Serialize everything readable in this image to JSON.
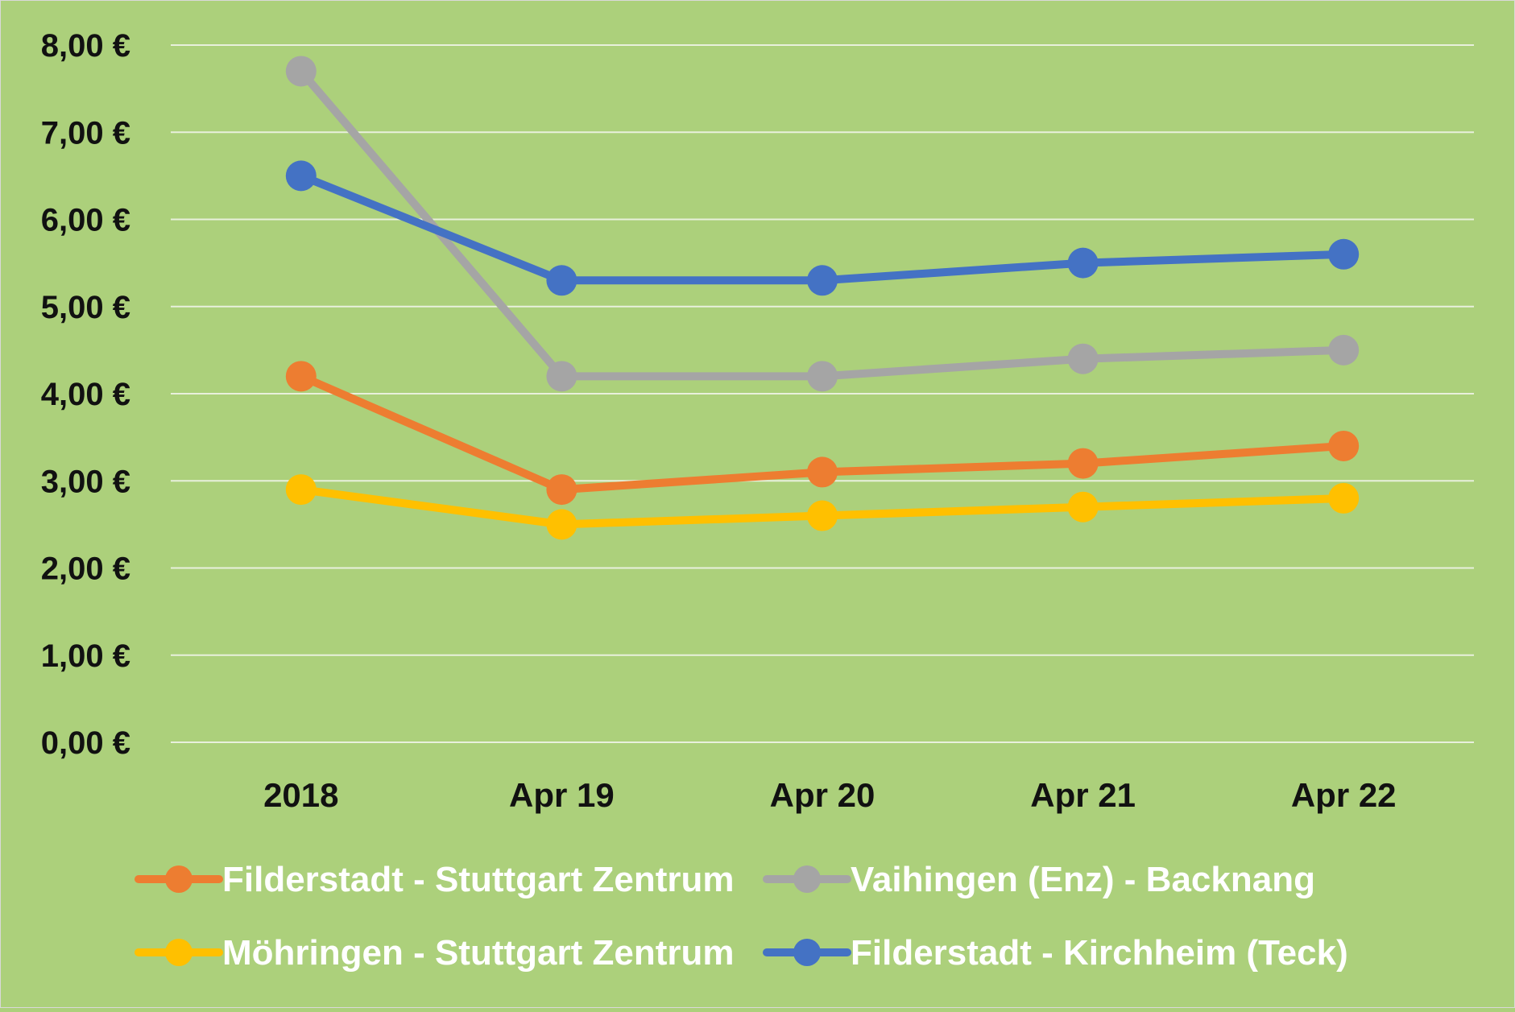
{
  "chart_data": {
    "type": "line",
    "title": "",
    "xlabel": "",
    "ylabel": "",
    "categories": [
      "2018",
      "Apr 19",
      "Apr 20",
      "Apr 21",
      "Apr 22"
    ],
    "y_ticks": [
      "0,00 €",
      "1,00 €",
      "2,00 €",
      "3,00 €",
      "4,00 €",
      "5,00 €",
      "6,00 €",
      "7,00 €",
      "8,00 €"
    ],
    "ylim": [
      0,
      8
    ],
    "grid": true,
    "legend_position": "bottom",
    "series": [
      {
        "name": "Filderstadt - Stuttgart Zentrum",
        "color": "#ed7d31",
        "values": [
          4.2,
          2.9,
          3.1,
          3.2,
          3.4
        ]
      },
      {
        "name": "Vaihingen (Enz) - Backnang",
        "color": "#a5a5a5",
        "values": [
          7.7,
          4.2,
          4.2,
          4.4,
          4.5
        ]
      },
      {
        "name": "Möhringen - Stuttgart Zentrum",
        "color": "#ffc000",
        "values": [
          2.9,
          2.5,
          2.6,
          2.7,
          2.8
        ]
      },
      {
        "name": "Filderstadt - Kirchheim (Teck)",
        "color": "#4472c4",
        "values": [
          6.5,
          5.3,
          5.3,
          5.5,
          5.6
        ]
      }
    ]
  }
}
